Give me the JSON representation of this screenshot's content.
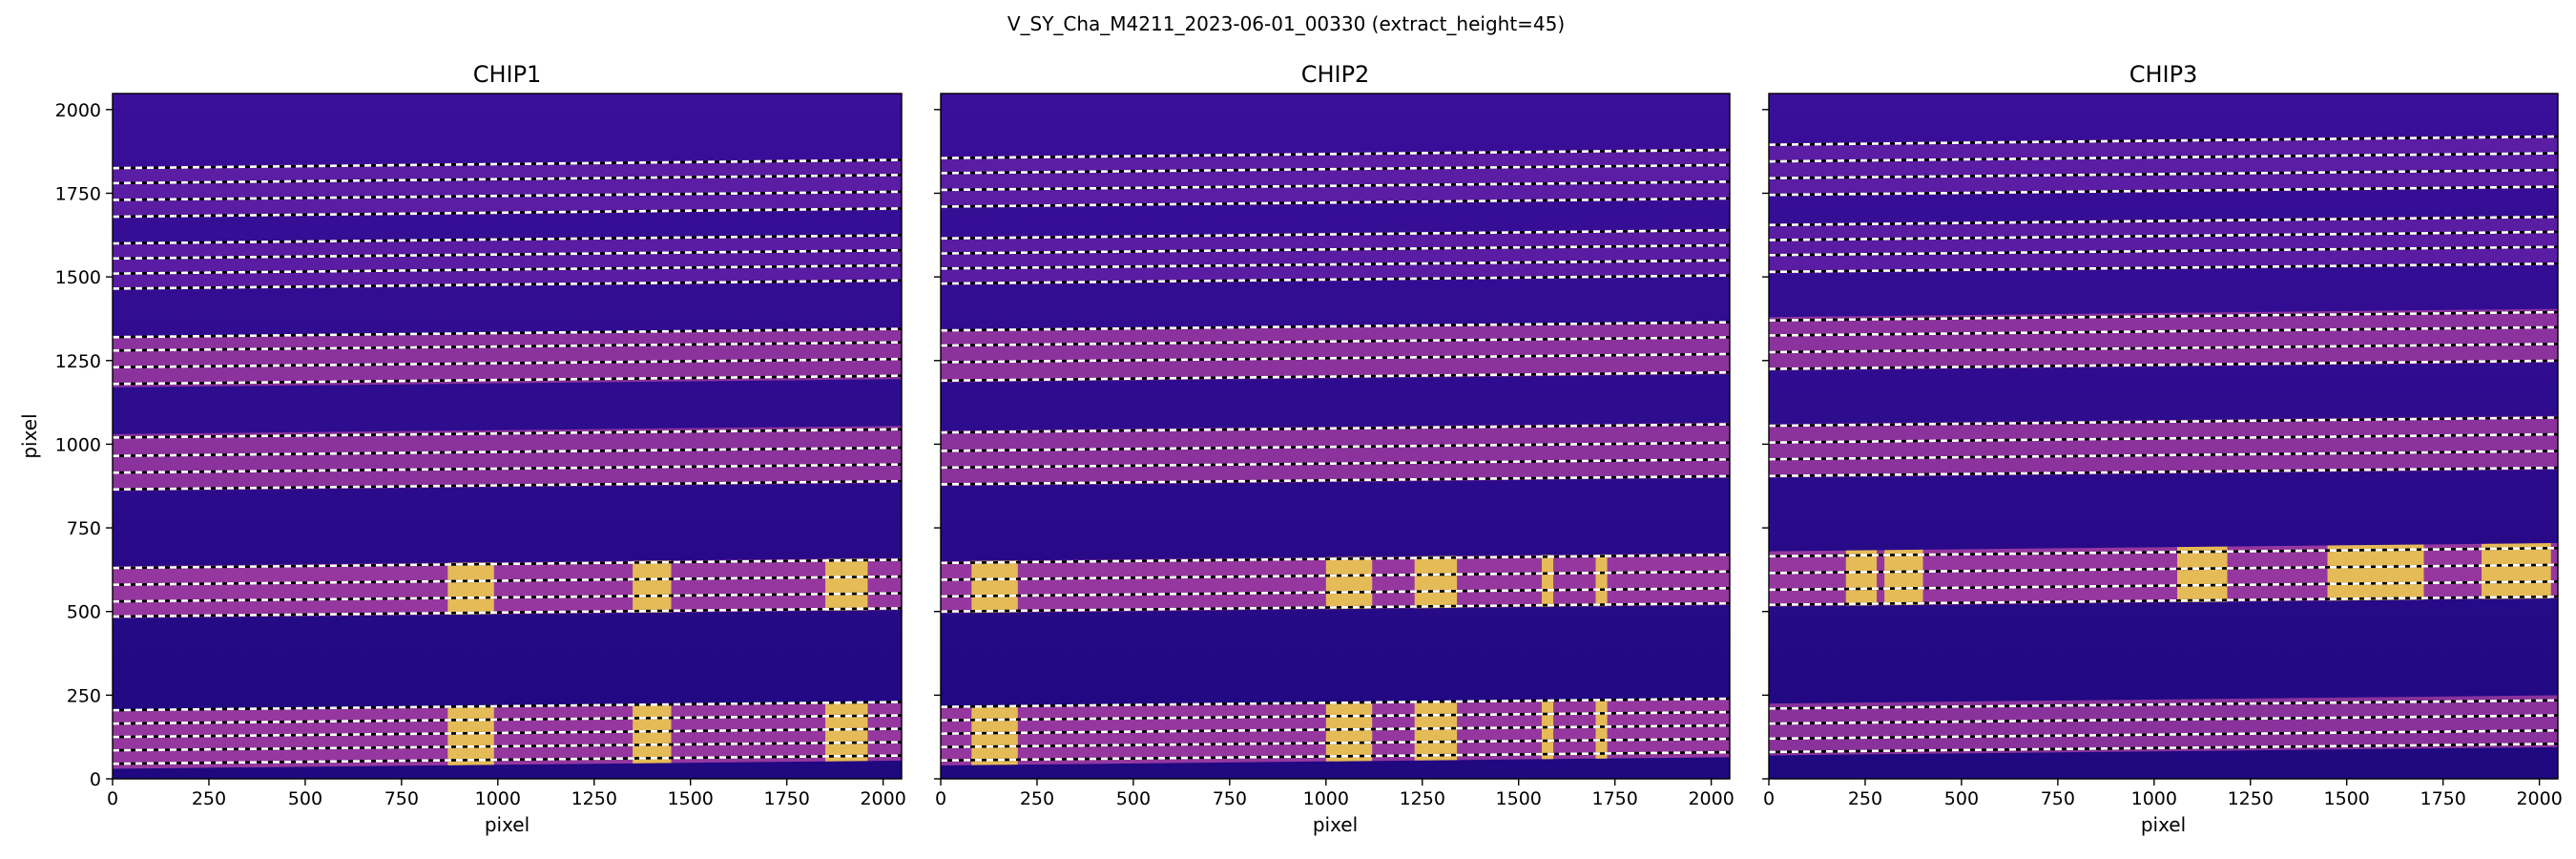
{
  "figure": {
    "suptitle": "V_SY_Cha_M4211_2023-06-01_00330  (extract_height=45)"
  },
  "colors": {
    "background_dark": "#2a0a8a",
    "trace_band": "#9c3aa0",
    "bright_spot": "#f3d24a",
    "trace_line_white": "#ffffff",
    "trace_line_black": "#000000"
  },
  "chart_data": [
    {
      "type": "heatmap",
      "title": "CHIP1",
      "xlabel": "pixel",
      "ylabel": "pixel",
      "xlim": [
        0,
        2048
      ],
      "ylim": [
        0,
        2048
      ],
      "xticks": [
        "0",
        "250",
        "500",
        "750",
        "1000",
        "1250",
        "1500",
        "1750",
        "2000"
      ],
      "yticks": [
        "0",
        "250",
        "500",
        "750",
        "1000",
        "1250",
        "1500",
        "1750",
        "2000"
      ],
      "colormap": "plasma",
      "bands": [
        {
          "y_start": 30,
          "y_end": 205,
          "intensity": "high",
          "traces": [
            45,
            85,
            125,
            165,
            205
          ]
        },
        {
          "y_start": 480,
          "y_end": 635,
          "intensity": "high",
          "traces": [
            485,
            530,
            580,
            630
          ]
        },
        {
          "y_start": 860,
          "y_end": 1030,
          "intensity": "medium",
          "traces": [
            865,
            915,
            965,
            1020
          ]
        },
        {
          "y_start": 1170,
          "y_end": 1320,
          "intensity": "medium",
          "traces": [
            1180,
            1230,
            1280,
            1320
          ]
        },
        {
          "y_start": 1460,
          "y_end": 1600,
          "intensity": "low",
          "traces": [
            1465,
            1510,
            1555,
            1600
          ]
        },
        {
          "y_start": 1675,
          "y_end": 1830,
          "intensity": "low",
          "traces": [
            1680,
            1730,
            1780,
            1825
          ]
        }
      ],
      "trace_slope": 0.012,
      "bright_x_ranges": [
        [
          870,
          990
        ],
        [
          1350,
          1450
        ],
        [
          1850,
          1960
        ]
      ]
    },
    {
      "type": "heatmap",
      "title": "CHIP2",
      "xlabel": "pixel",
      "ylabel": "",
      "xlim": [
        0,
        2048
      ],
      "ylim": [
        0,
        2048
      ],
      "xticks": [
        "0",
        "250",
        "500",
        "750",
        "1000",
        "1250",
        "1500",
        "1750",
        "2000"
      ],
      "yticks": [],
      "colormap": "plasma",
      "bands": [
        {
          "y_start": 40,
          "y_end": 215,
          "intensity": "high",
          "traces": [
            55,
            95,
            135,
            175,
            215
          ]
        },
        {
          "y_start": 495,
          "y_end": 650,
          "intensity": "high",
          "traces": [
            500,
            545,
            595,
            645
          ]
        },
        {
          "y_start": 875,
          "y_end": 1040,
          "intensity": "medium",
          "traces": [
            880,
            930,
            980,
            1035
          ]
        },
        {
          "y_start": 1185,
          "y_end": 1340,
          "intensity": "medium",
          "traces": [
            1190,
            1245,
            1295,
            1340
          ]
        },
        {
          "y_start": 1475,
          "y_end": 1620,
          "intensity": "low",
          "traces": [
            1480,
            1525,
            1570,
            1615
          ]
        },
        {
          "y_start": 1705,
          "y_end": 1860,
          "intensity": "low",
          "traces": [
            1710,
            1760,
            1810,
            1855
          ]
        }
      ],
      "trace_slope": 0.012,
      "bright_x_ranges": [
        [
          80,
          200
        ],
        [
          1000,
          1120
        ],
        [
          1230,
          1340
        ],
        [
          1560,
          1590
        ],
        [
          1700,
          1730
        ]
      ]
    },
    {
      "type": "heatmap",
      "title": "CHIP3",
      "xlabel": "pixel",
      "ylabel": "",
      "xlim": [
        0,
        2048
      ],
      "ylim": [
        0,
        2048
      ],
      "xticks": [
        "0",
        "250",
        "500",
        "750",
        "1000",
        "1250",
        "1500",
        "1750",
        "2000"
      ],
      "yticks": [],
      "colormap": "plasma",
      "bands": [
        {
          "y_start": 70,
          "y_end": 225,
          "intensity": "medium",
          "traces": [
            80,
            120,
            165,
            210
          ]
        },
        {
          "y_start": 515,
          "y_end": 680,
          "intensity": "high",
          "traces": [
            520,
            565,
            615,
            665
          ]
        },
        {
          "y_start": 900,
          "y_end": 1060,
          "intensity": "medium",
          "traces": [
            905,
            955,
            1005,
            1055
          ]
        },
        {
          "y_start": 1220,
          "y_end": 1380,
          "intensity": "medium",
          "traces": [
            1225,
            1275,
            1325,
            1370
          ]
        },
        {
          "y_start": 1510,
          "y_end": 1660,
          "intensity": "low",
          "traces": [
            1515,
            1565,
            1610,
            1655
          ]
        },
        {
          "y_start": 1740,
          "y_end": 1900,
          "intensity": "low",
          "traces": [
            1745,
            1795,
            1845,
            1895
          ]
        }
      ],
      "trace_slope": 0.012,
      "bright_x_ranges": [
        [
          200,
          280
        ],
        [
          300,
          400
        ],
        [
          1060,
          1190
        ],
        [
          1450,
          1700
        ],
        [
          1850,
          2030
        ]
      ]
    }
  ]
}
